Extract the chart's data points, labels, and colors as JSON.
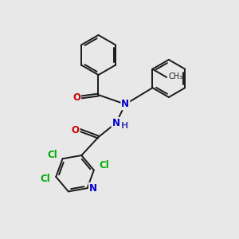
{
  "bg_color": "#e8e8e8",
  "bond_color": "#1a1a1a",
  "bond_width": 1.4,
  "atom_colors": {
    "C": "#1a1a1a",
    "N": "#0000cc",
    "O": "#cc0000",
    "Cl": "#00aa00",
    "H": "#4444bb"
  },
  "font_size": 8.5
}
